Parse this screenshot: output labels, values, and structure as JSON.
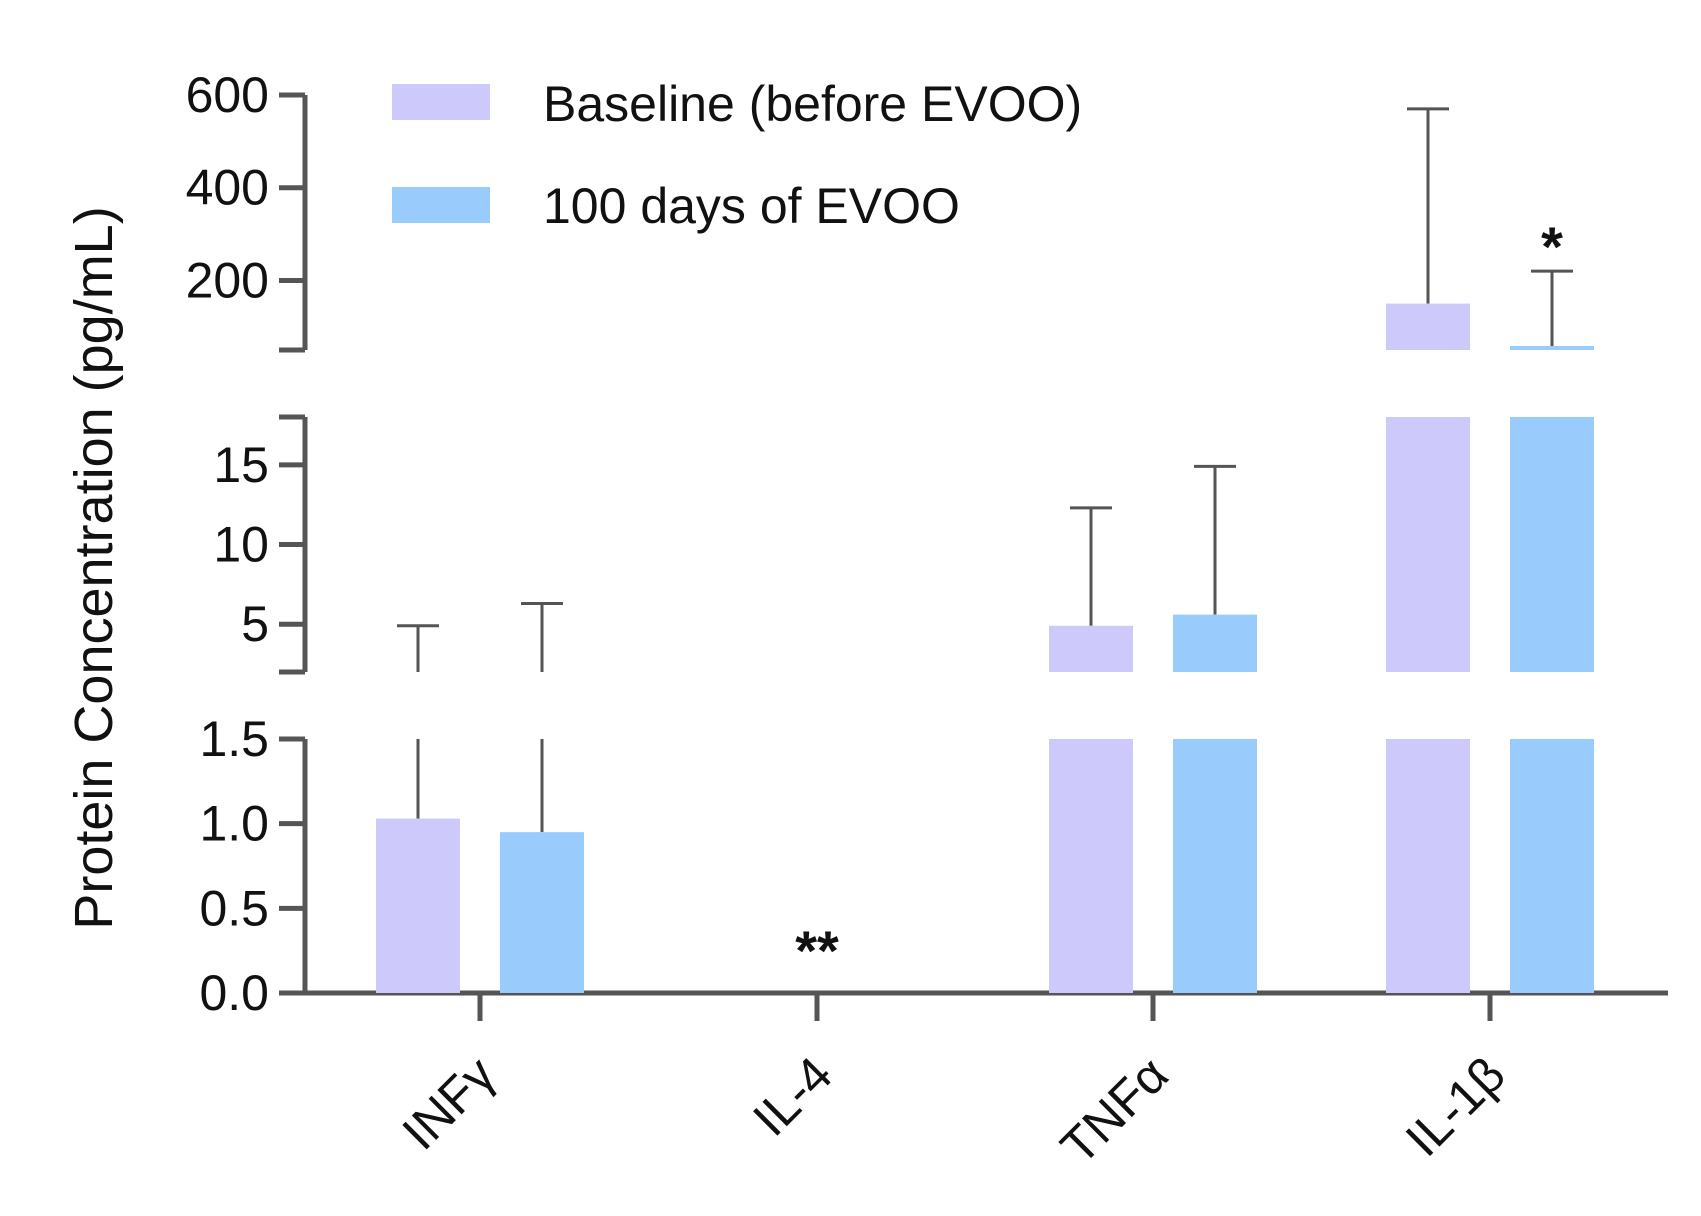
{
  "chart_data": {
    "type": "bar",
    "title": "",
    "xlabel": "",
    "ylabel": "Protein Concentration (pg/mL)",
    "grid": false,
    "legend_position": "top",
    "categories": [
      "INFγ",
      "IL-4",
      "TNFα",
      "IL-1β"
    ],
    "axis_segments": [
      {
        "name": "low",
        "range": [
          0,
          1.5
        ],
        "ticks": [
          "0.0",
          "0.5",
          "1.0",
          "1.5"
        ]
      },
      {
        "name": "mid",
        "range": [
          2,
          18
        ],
        "ticks": [
          "5",
          "10",
          "15"
        ]
      },
      {
        "name": "high",
        "range": [
          50,
          600
        ],
        "ticks": [
          "200",
          "400",
          "600"
        ]
      }
    ],
    "series": [
      {
        "name": "Baseline (before EVOO)",
        "color": "#cdc9fb",
        "values": [
          1.03,
          0,
          4.9,
          150
        ],
        "error_upper": [
          4.9,
          0,
          12.3,
          570
        ]
      },
      {
        "name": "100 days of EVOO",
        "color": "#99ccfc",
        "values": [
          0.95,
          0,
          5.6,
          55
        ],
        "error_upper": [
          6.3,
          0,
          14.9,
          220
        ]
      }
    ],
    "annotations": [
      {
        "text": "**",
        "category": "IL-4",
        "series": "100 days of EVOO"
      },
      {
        "text": "*",
        "category": "IL-1β",
        "series": "100 days of EVOO"
      }
    ]
  }
}
